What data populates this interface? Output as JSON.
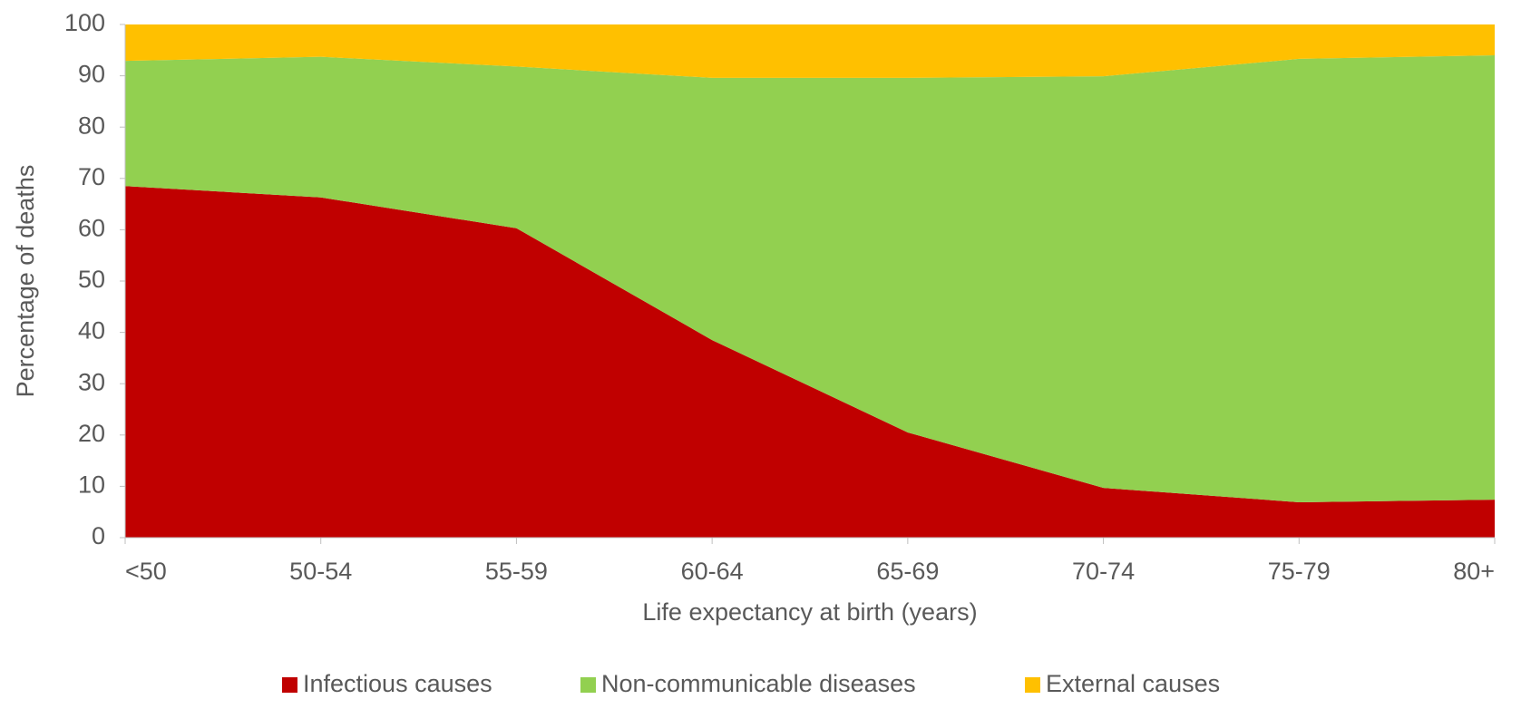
{
  "chart_data": {
    "type": "stacked_area",
    "x_label": "Life expectancy at birth (years)",
    "y_label": "Percentage of deaths",
    "categories": [
      "<50",
      "50-54",
      "55-59",
      "60-64",
      "65-69",
      "70-74",
      "75-79",
      "80+"
    ],
    "series": [
      {
        "name": "Infectious causes",
        "color": "#c00000",
        "values": [
          68.5,
          66.3,
          60.3,
          38.5,
          20.5,
          9.7,
          6.9,
          7.4
        ]
      },
      {
        "name": "Non-communicable diseases",
        "color": "#92d050",
        "values": [
          24.4,
          27.4,
          31.5,
          51.1,
          69.1,
          80.2,
          86.4,
          86.6
        ]
      },
      {
        "name": "External causes",
        "color": "#ffc000",
        "values": [
          7.1,
          6.3,
          8.2,
          10.4,
          10.4,
          10.1,
          6.7,
          6.0
        ]
      }
    ],
    "ylim": [
      0,
      100
    ],
    "yticks": [
      0,
      10,
      20,
      30,
      40,
      50,
      60,
      70,
      80,
      90,
      100
    ],
    "legend": "bottom"
  }
}
